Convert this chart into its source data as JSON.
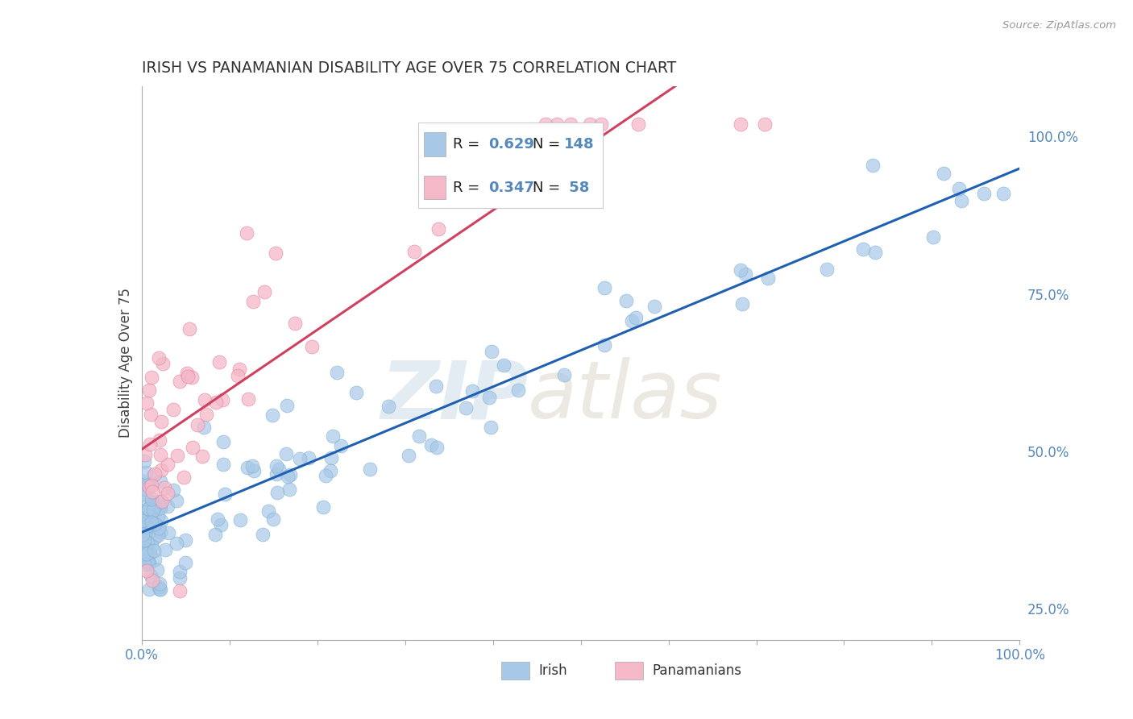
{
  "title": "IRISH VS PANAMANIAN DISABILITY AGE OVER 75 CORRELATION CHART",
  "source_text": "Source: ZipAtlas.com",
  "ylabel": "Disability Age Over 75",
  "watermark": "ZIPatlas",
  "irish_R": 0.629,
  "irish_N": 148,
  "pan_R": 0.347,
  "pan_N": 58,
  "irish_color": "#a8c8e8",
  "irish_edge": "#7aafd0",
  "pan_color": "#f4b8c8",
  "pan_edge": "#e080a0",
  "irish_line_color": "#2060b0",
  "pan_line_color": "#d04060",
  "background_color": "#ffffff",
  "grid_color": "#cccccc",
  "right_yticks": [
    0.25,
    0.5,
    0.75,
    1.0
  ],
  "right_yticklabels": [
    "25.0%",
    "50.0%",
    "75.0%",
    "100.0%"
  ],
  "xlim": [
    0.0,
    1.0
  ],
  "ylim": [
    0.2,
    1.08
  ],
  "axis_color": "#5588bb",
  "title_color": "#333333",
  "ylabel_color": "#444444"
}
